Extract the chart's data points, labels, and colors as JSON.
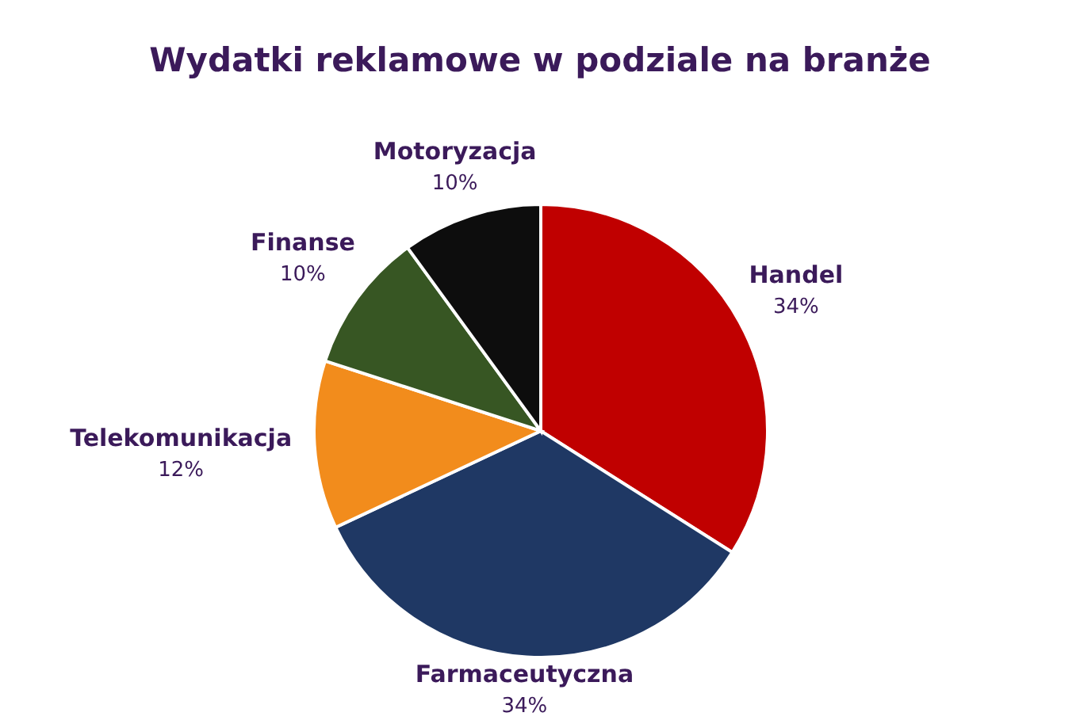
{
  "chart_data": {
    "type": "pie",
    "title": "Wydatki reklamowe w podziale na branże",
    "categories": [
      "Handel",
      "Farmaceutyczna",
      "Telekomunikacja",
      "Finanse",
      "Motoryzacja"
    ],
    "values": [
      34,
      34,
      12,
      10,
      10
    ],
    "value_labels": [
      "34%",
      "34%",
      "12%",
      "10%",
      "10%"
    ],
    "colors": [
      "#c00000",
      "#1f3864",
      "#f28c1c",
      "#375623",
      "#0d0d0d"
    ],
    "legend": false
  }
}
